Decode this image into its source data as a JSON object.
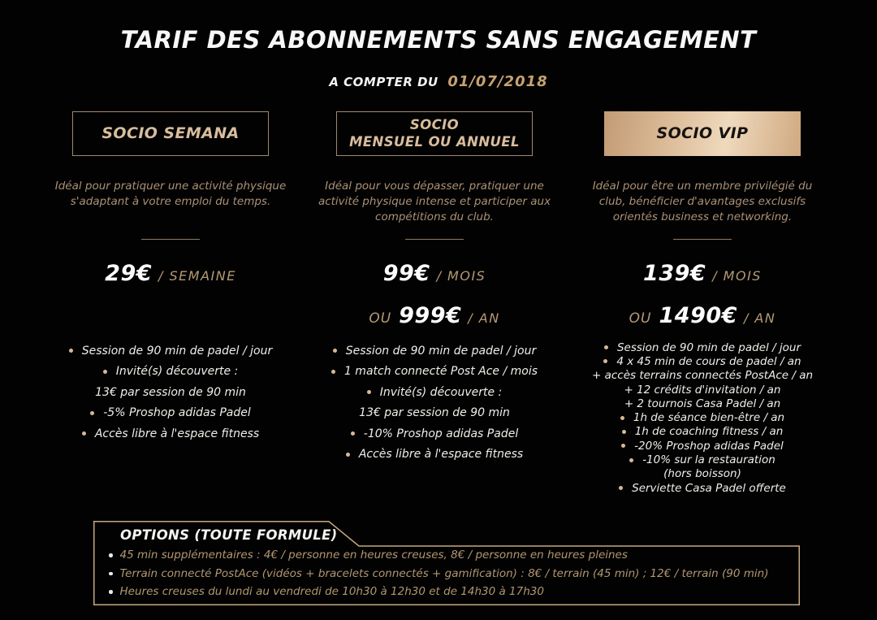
{
  "header": {
    "title": "TARIF DES ABONNEMENTS SANS ENGAGEMENT",
    "subtitle_prefix": "A COMPTER DU",
    "subtitle_date": "01/07/2018"
  },
  "colors": {
    "background": "#020202",
    "gold_text": "#b29772",
    "gold_light": "#d8bd9d",
    "gold_bullet": "#d9b993",
    "white_text": "#f1eee9",
    "vip_gradient_start": "#c29b74",
    "vip_gradient_end": "#efd9bd"
  },
  "plans": [
    {
      "name_lines": [
        "SOCIO SEMANA"
      ],
      "header_style": "outline",
      "description": "Idéal pour pratiquer une activité physique s'adaptant à votre emploi du temps.",
      "prices": [
        {
          "prefix": "",
          "amount": "29€",
          "period": "/ SEMAINE"
        }
      ],
      "features": [
        {
          "bullet": true,
          "text": "Session de 90 min de padel / jour"
        },
        {
          "bullet": true,
          "text": "Invité(s) découverte :"
        },
        {
          "bullet": false,
          "text": "13€ par session de 90 min"
        },
        {
          "bullet": true,
          "text": "-5% Proshop adidas Padel"
        },
        {
          "bullet": true,
          "text": "Accès libre à l'espace fitness"
        }
      ]
    },
    {
      "name_lines": [
        "SOCIO",
        "MENSUEL OU ANNUEL"
      ],
      "header_style": "outline",
      "description": "Idéal pour vous dépasser, pratiquer une activité physique intense et participer aux compétitions du club.",
      "prices": [
        {
          "prefix": "",
          "amount": "99€",
          "period": "/ MOIS"
        },
        {
          "prefix": "OU",
          "amount": "999€",
          "period": "/ AN"
        }
      ],
      "features": [
        {
          "bullet": true,
          "text": "Session de 90 min de padel / jour"
        },
        {
          "bullet": true,
          "text": "1 match connecté Post Ace / mois"
        },
        {
          "bullet": true,
          "text": "Invité(s) découverte :"
        },
        {
          "bullet": false,
          "text": "13€ par session de 90 min"
        },
        {
          "bullet": true,
          "text": "-10% Proshop adidas Padel"
        },
        {
          "bullet": true,
          "text": "Accès libre à l'espace fitness"
        }
      ]
    },
    {
      "name_lines": [
        "SOCIO VIP"
      ],
      "header_style": "filled",
      "description": "Idéal pour être un membre privilégié du club, bénéficier d'avantages exclusifs orientés business et networking.",
      "prices": [
        {
          "prefix": "",
          "amount": "139€",
          "period": "/ MOIS"
        },
        {
          "prefix": "OU",
          "amount": "1490€",
          "period": "/ AN"
        }
      ],
      "features": [
        {
          "bullet": true,
          "text": "Session de 90 min de padel / jour"
        },
        {
          "bullet": true,
          "text": "4 x 45 min de cours de padel / an"
        },
        {
          "bullet": false,
          "text": "+ accès terrains connectés PostAce / an"
        },
        {
          "bullet": false,
          "text": "+ 12 crédits d'invitation / an"
        },
        {
          "bullet": false,
          "text": "+ 2 tournois Casa Padel / an"
        },
        {
          "bullet": true,
          "text": "1h de séance bien-être / an"
        },
        {
          "bullet": true,
          "text": "1h de coaching fitness / an"
        },
        {
          "bullet": true,
          "text": "-20% Proshop adidas Padel"
        },
        {
          "bullet": true,
          "text": "-10% sur la restauration"
        },
        {
          "bullet": false,
          "text": "(hors boisson)"
        },
        {
          "bullet": true,
          "text": "Serviette Casa Padel offerte"
        }
      ]
    }
  ],
  "options": {
    "title": "OPTIONS (TOUTE FORMULE)",
    "items": [
      "45 min supplémentaires : 4€ / personne en heures creuses, 8€ / personne en heures pleines",
      "Terrain connecté PostAce (vidéos + bracelets connectés + gamification) : 8€ / terrain (45 min) ; 12€ / terrain (90 min)",
      "Heures creuses du lundi au vendredi de 10h30 à 12h30 et de 14h30 à 17h30"
    ]
  }
}
